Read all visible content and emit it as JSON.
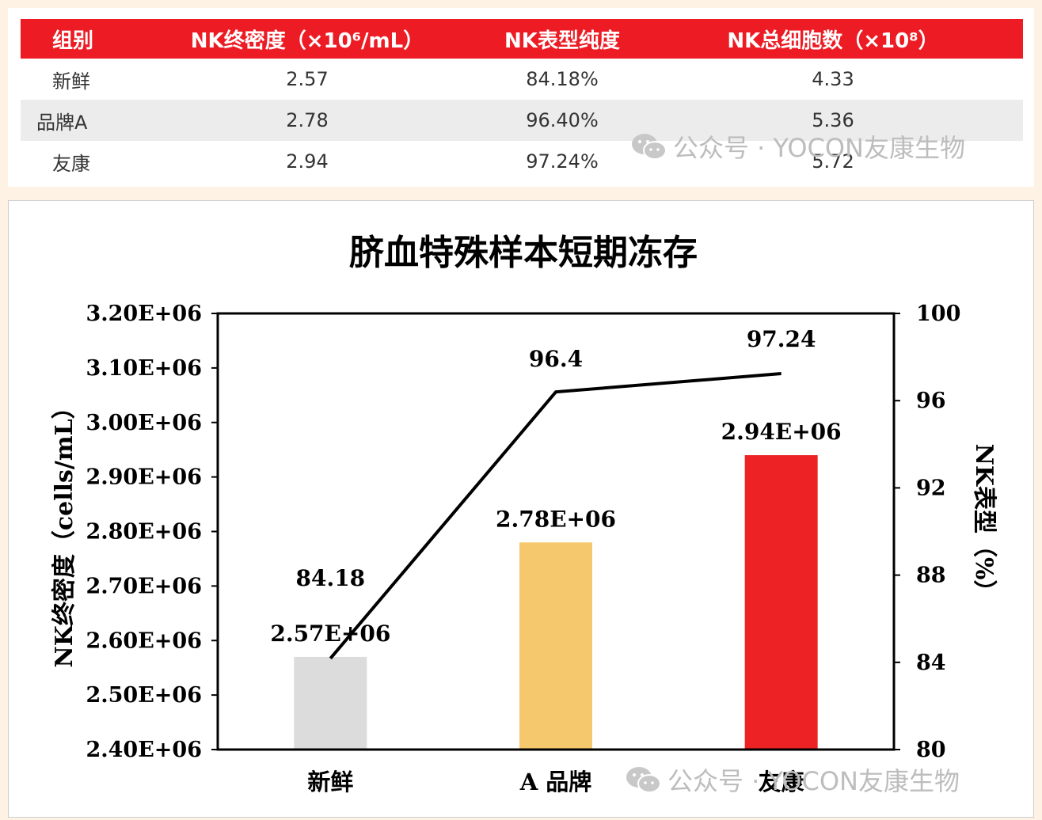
{
  "table": {
    "headers": [
      "组别",
      "NK终密度（×10⁶/mL）",
      "NK表型纯度",
      "NK总细胞数（×10⁸）"
    ],
    "rows": [
      [
        "新鲜",
        "2.57",
        "84.18%",
        "4.33"
      ],
      [
        "品牌A",
        "2.78",
        "96.40%",
        "5.36"
      ],
      [
        "友康",
        "2.94",
        "97.24%",
        "5.72"
      ]
    ]
  },
  "watermark": {
    "top_text": "公众号 · YOCON友康生物",
    "bottom_text": "公众号 · YOCON友康生物"
  },
  "chart_data": {
    "type": "bar",
    "title": "脐血特殊样本短期冻存",
    "categories": [
      "新鲜",
      "A 品牌",
      "友康"
    ],
    "bar_values": [
      2570000,
      2780000,
      2940000
    ],
    "bar_labels": [
      "2.57E+06",
      "2.78E+06",
      "2.94E+06"
    ],
    "bar_colors": [
      "#dcdcdc",
      "#f5c86e",
      "#ed2224"
    ],
    "line_values": [
      84.18,
      96.4,
      97.24
    ],
    "line_labels": [
      "84.18",
      "96.4",
      "97.24"
    ],
    "ylabel": "NK终密度（cells/mL）",
    "y2label": "NK表型（%）",
    "ylim": [
      2400000,
      3200000
    ],
    "y_ticks": [
      "3.20E+06",
      "3.10E+06",
      "3.00E+06",
      "2.90E+06",
      "2.80E+06",
      "2.70E+06",
      "2.60E+06",
      "2.50E+06",
      "2.40E+06"
    ],
    "y2lim": [
      80,
      100
    ],
    "y2_ticks": [
      "100",
      "96",
      "92",
      "88",
      "84",
      "80"
    ],
    "grid": false,
    "legend": "none"
  }
}
